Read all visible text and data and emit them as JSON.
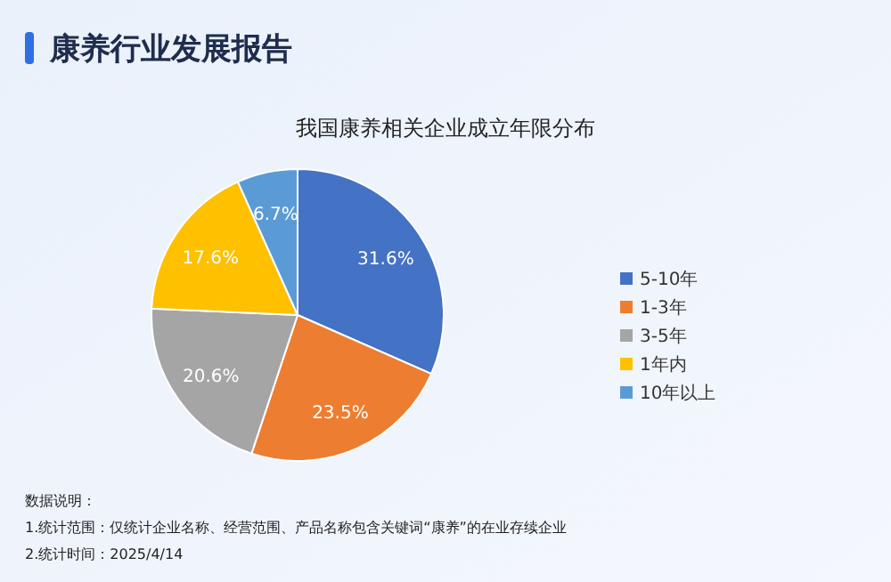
{
  "chart_data": {
    "type": "pie",
    "title": "康养行业发展报告",
    "subtitle": "我国康养相关企业成立年限分布",
    "categories": [
      "5-10年",
      "1-3年",
      "3-5年",
      "1年内",
      "10年以上"
    ],
    "values": [
      31.6,
      23.5,
      20.6,
      17.6,
      6.7
    ],
    "value_labels": [
      "31.6%",
      "23.5%",
      "20.6%",
      "17.6%",
      "6.7%"
    ],
    "colors": [
      "#4472c4",
      "#ed7d31",
      "#a5a5a5",
      "#ffc000",
      "#5b9bd5"
    ],
    "legend": "right",
    "annotations": [
      "数据说明：",
      "1.统计范围：仅统计企业名称、经营范围、产品名称包含关键词“康养”的在业存续企业",
      "2.统计时间：2025/4/14"
    ]
  }
}
